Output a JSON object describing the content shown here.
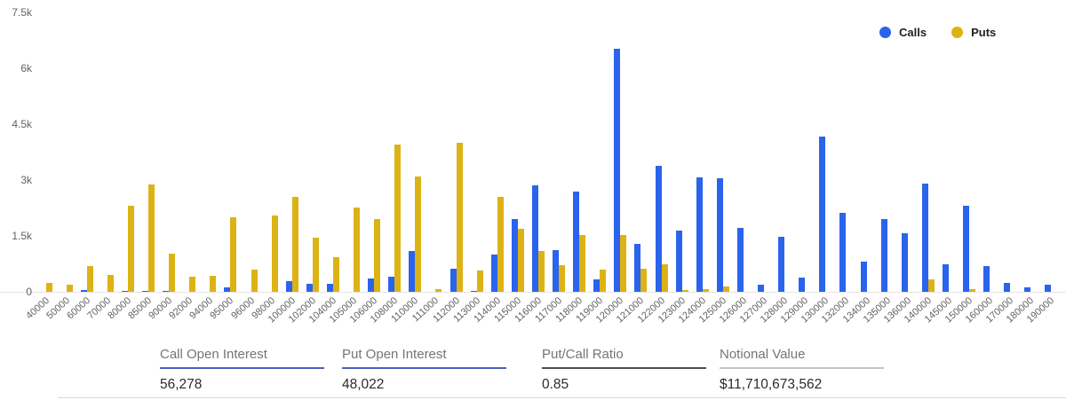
{
  "chart_data": {
    "type": "bar",
    "title": "",
    "xlabel": "",
    "ylabel": "",
    "ylim": [
      0,
      7500
    ],
    "grid": false,
    "legend_position": "top-right",
    "yticks": [
      {
        "value": 0,
        "label": "0"
      },
      {
        "value": 1500,
        "label": "1.5k"
      },
      {
        "value": 3000,
        "label": "3k"
      },
      {
        "value": 4500,
        "label": "4.5k"
      },
      {
        "value": 6000,
        "label": "6k"
      },
      {
        "value": 7500,
        "label": "7.5k"
      }
    ],
    "categories": [
      "40000",
      "50000",
      "60000",
      "70000",
      "80000",
      "85000",
      "90000",
      "92000",
      "94000",
      "95000",
      "96000",
      "98000",
      "100000",
      "102000",
      "104000",
      "105000",
      "106000",
      "108000",
      "110000",
      "111000",
      "112000",
      "113000",
      "114000",
      "115000",
      "116000",
      "117000",
      "118000",
      "119000",
      "120000",
      "121000",
      "122000",
      "123000",
      "124000",
      "125000",
      "126000",
      "127000",
      "128000",
      "129000",
      "130000",
      "132000",
      "134000",
      "135000",
      "136000",
      "140000",
      "145000",
      "150000",
      "160000",
      "170000",
      "180000",
      "190000"
    ],
    "series": [
      {
        "name": "Calls",
        "color": "#2a63ec",
        "values": [
          0,
          0,
          40,
          0,
          30,
          20,
          20,
          0,
          0,
          110,
          0,
          0,
          290,
          210,
          220,
          0,
          350,
          400,
          1100,
          0,
          620,
          30,
          1000,
          1950,
          2850,
          1120,
          2700,
          330,
          6530,
          1290,
          3380,
          1650,
          3070,
          3050,
          1720,
          180,
          1480,
          390,
          4160,
          2110,
          800,
          1950,
          1560,
          2900,
          740,
          2320,
          680,
          240,
          120,
          190
        ]
      },
      {
        "name": "Puts",
        "color": "#ddb215",
        "values": [
          240,
          200,
          700,
          460,
          2300,
          2880,
          1030,
          400,
          430,
          2000,
          600,
          2050,
          2550,
          1450,
          930,
          2250,
          1950,
          3950,
          3100,
          80,
          4000,
          560,
          2550,
          1700,
          1100,
          720,
          1520,
          600,
          1520,
          630,
          740,
          50,
          70,
          150,
          0,
          0,
          0,
          0,
          0,
          0,
          0,
          0,
          0,
          340,
          0,
          60,
          0,
          0,
          0,
          0
        ]
      }
    ]
  },
  "stats": [
    {
      "label": "Call Open Interest",
      "value": "56,278",
      "underline_color": "#4e5fbf"
    },
    {
      "label": "Put Open Interest",
      "value": "48,022",
      "underline_color": "#4e5fbf"
    },
    {
      "label": "Put/Call Ratio",
      "value": "0.85",
      "underline_color": "#4f4f4f"
    },
    {
      "label": "Notional Value",
      "value": "$11,710,673,562",
      "underline_color": "#c3c3c3"
    }
  ]
}
